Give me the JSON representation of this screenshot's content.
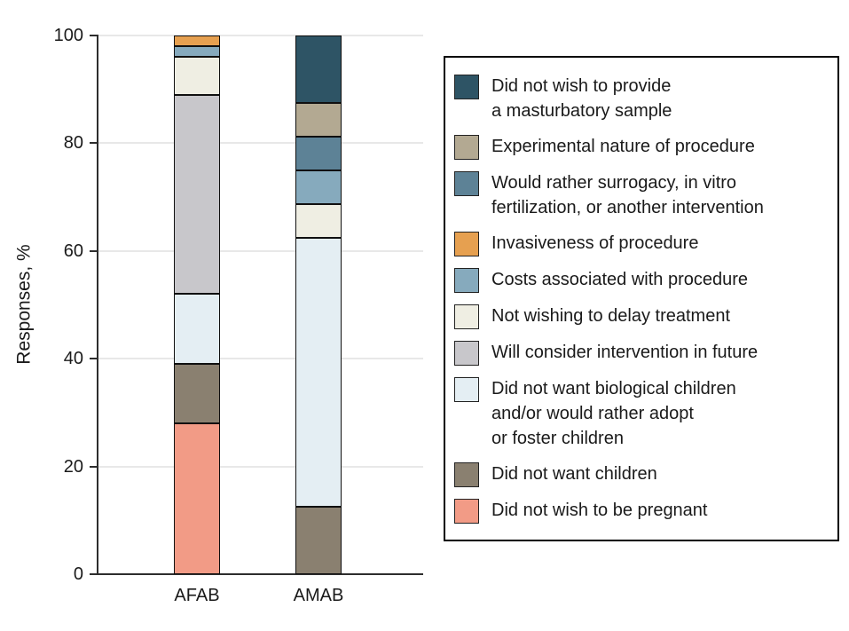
{
  "chart_data": {
    "type": "bar",
    "stacked": true,
    "orientation": "vertical",
    "title": "",
    "xlabel": "",
    "ylabel": "Responses, %",
    "ylim": [
      0,
      100
    ],
    "yticks": [
      0,
      20,
      40,
      60,
      80,
      100
    ],
    "grid": true,
    "legend_position": "right",
    "categories": [
      "AFAB",
      "AMAB"
    ],
    "series": [
      {
        "name": "Did not wish to provide a masturbatory sample",
        "label_lines": [
          "Did not wish to provide",
          "a masturbatory sample"
        ],
        "color": "#2e5465",
        "values": [
          0,
          12.5
        ]
      },
      {
        "name": "Experimental nature of procedure",
        "label_lines": [
          "Experimental nature of procedure"
        ],
        "color": "#b3a992",
        "values": [
          0,
          6.25
        ]
      },
      {
        "name": "Would rather surrogacy, in vitro fertilization, or another intervention",
        "label_lines": [
          "Would rather surrogacy, in vitro",
          "fertilization, or another intervention"
        ],
        "color": "#5d8296",
        "values": [
          0,
          6.25
        ]
      },
      {
        "name": "Invasiveness of procedure",
        "label_lines": [
          "Invasiveness of procedure"
        ],
        "color": "#e6a050",
        "values": [
          2,
          0
        ]
      },
      {
        "name": "Costs associated with procedure",
        "label_lines": [
          "Costs associated with procedure"
        ],
        "color": "#86aabd",
        "values": [
          2,
          6.25
        ]
      },
      {
        "name": "Not wishing to delay treatment",
        "label_lines": [
          "Not wishing to delay treatment"
        ],
        "color": "#efeee3",
        "values": [
          7,
          6.25
        ]
      },
      {
        "name": "Will consider intervention in future",
        "label_lines": [
          "Will consider intervention in future"
        ],
        "color": "#c8c7cb",
        "values": [
          37,
          0
        ]
      },
      {
        "name": "Did not want biological children and/or would rather adopt or foster children",
        "label_lines": [
          "Did not want biological children",
          "and/or would rather adopt",
          "or foster children"
        ],
        "color": "#e4eef3",
        "values": [
          13,
          50
        ]
      },
      {
        "name": "Did not want children",
        "label_lines": [
          "Did not want children"
        ],
        "color": "#8a8070",
        "values": [
          11,
          12.5
        ]
      },
      {
        "name": "Did not wish to be pregnant",
        "label_lines": [
          "Did not wish to be pregnant"
        ],
        "color": "#f29b86",
        "values": [
          28,
          0
        ]
      }
    ]
  },
  "style": {
    "axis_color": "#2d2d2d",
    "grid_color": "#e8e8e8",
    "text_color": "#1a1a1a",
    "bar_border_color": "#101010",
    "swatch_border_color": "#222222",
    "legend_border_color": "#000000",
    "background": "#ffffff"
  }
}
